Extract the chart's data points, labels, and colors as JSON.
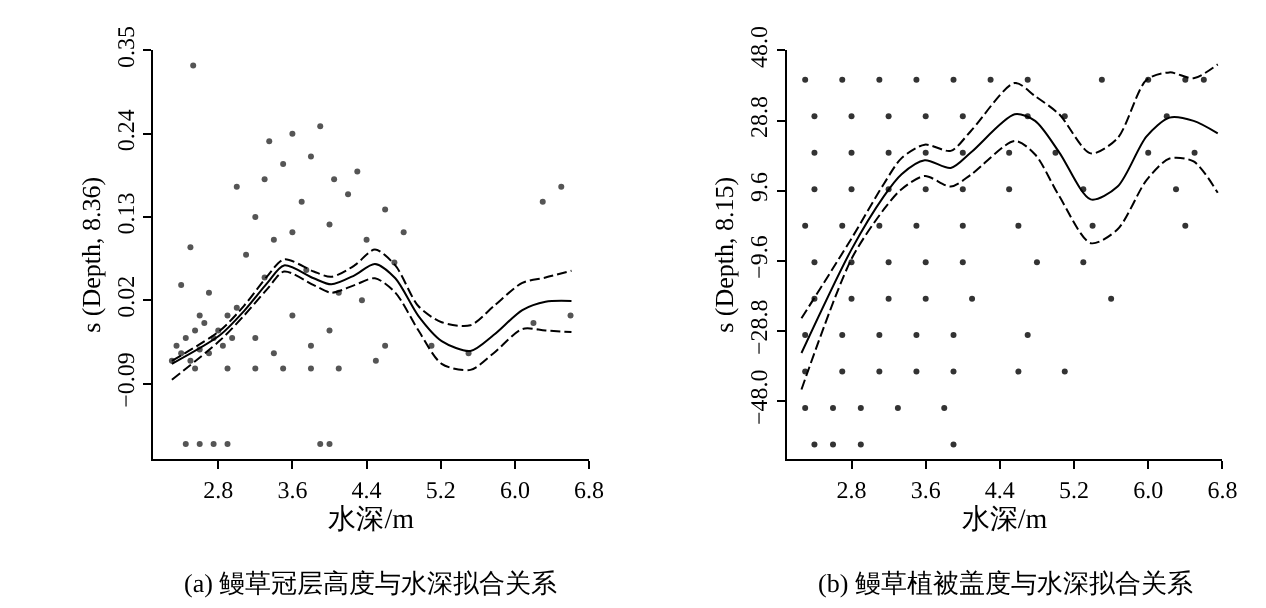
{
  "chart_data": [
    {
      "type": "scatter",
      "title": "(a) 鳗草冠层高度与水深拟合关系",
      "xlabel": "水深/m",
      "ylabel": "s (Depth, 8.36)",
      "xlim": [
        2.1,
        6.8
      ],
      "ylim": [
        -0.19,
        0.35
      ],
      "xticks": [
        2.8,
        3.6,
        4.4,
        5.2,
        {
          "value": 6,
          "label": "6.0"
        },
        6.8
      ],
      "yticks": [
        -0.09,
        0.02,
        0.13,
        0.24,
        0.35
      ],
      "series": [
        {
          "color": "#555555",
          "x": [
            2.3,
            2.35,
            2.4,
            2.45,
            2.5,
            2.55,
            2.6,
            2.65,
            2.7,
            2.75,
            2.8,
            2.85,
            2.9,
            2.95,
            3.0,
            2.4,
            2.5,
            2.6,
            2.7,
            2.55,
            2.9,
            3.2,
            3.5,
            3.8,
            4.1,
            3.1,
            3.2,
            3.3,
            3.35,
            3.4,
            3.5,
            3.6,
            3.7,
            3.75,
            3.8,
            3.9,
            4.0,
            4.05,
            4.1,
            4.2,
            4.3,
            4.4,
            3.0,
            3.2,
            3.4,
            3.6,
            3.8,
            4.0,
            3.3,
            3.6,
            4.6,
            4.7,
            4.8,
            4.6,
            4.5,
            4.35,
            5.1,
            5.5,
            6.2,
            6.3,
            6.5,
            6.6,
            2.53,
            2.45,
            2.6,
            2.75,
            2.9,
            3.9,
            4.0
          ],
          "values": [
            -0.06,
            -0.04,
            -0.05,
            -0.03,
            -0.06,
            -0.02,
            -0.045,
            -0.01,
            -0.05,
            -0.03,
            -0.02,
            -0.04,
            0.0,
            -0.03,
            0.01,
            0.04,
            0.09,
            0.0,
            0.03,
            -0.07,
            -0.07,
            -0.07,
            -0.07,
            -0.07,
            -0.07,
            0.08,
            0.13,
            0.18,
            0.23,
            0.1,
            0.2,
            0.24,
            0.15,
            0.06,
            0.21,
            0.25,
            0.12,
            0.18,
            0.03,
            0.16,
            0.19,
            0.1,
            0.17,
            -0.03,
            -0.05,
            0.0,
            -0.04,
            -0.02,
            0.05,
            0.11,
            0.14,
            0.07,
            0.11,
            -0.04,
            -0.06,
            0.02,
            -0.04,
            -0.05,
            -0.01,
            0.15,
            0.17,
            0.0,
            0.33,
            -0.17,
            -0.17,
            -0.17,
            -0.17,
            -0.17,
            -0.17
          ]
        },
        {
          "type": "line",
          "color": "#000000",
          "line_style": "solid",
          "x": [
            2.3,
            2.82,
            3.08,
            3.33,
            3.51,
            3.83,
            4.02,
            4.27,
            4.49,
            4.71,
            4.96,
            5.21,
            5.52,
            5.77,
            6.08,
            6.33,
            6.61
          ],
          "values": [
            -0.064,
            -0.026,
            0.006,
            0.043,
            0.066,
            0.049,
            0.041,
            0.053,
            0.068,
            0.049,
            -0.001,
            -0.034,
            -0.047,
            -0.026,
            0.007,
            0.018,
            0.019
          ]
        },
        {
          "type": "line",
          "color": "#000000",
          "line_style": "dashed",
          "x": [
            2.3,
            2.82,
            3.08,
            3.33,
            3.51,
            3.83,
            4.02,
            4.27,
            4.49,
            4.71,
            4.96,
            5.21,
            5.52,
            5.77,
            6.08,
            6.33,
            6.61
          ],
          "values": [
            -0.06,
            -0.02,
            0.013,
            0.052,
            0.074,
            0.058,
            0.051,
            0.066,
            0.087,
            0.066,
            0.012,
            -0.009,
            -0.013,
            0.012,
            0.043,
            0.05,
            0.059
          ]
        },
        {
          "type": "line",
          "color": "#000000",
          "line_style": "dashed",
          "x": [
            2.3,
            2.82,
            3.08,
            3.33,
            3.51,
            3.83,
            4.02,
            4.27,
            4.49,
            4.71,
            4.96,
            5.21,
            5.52,
            5.77,
            6.08,
            6.33,
            6.61
          ],
          "values": [
            -0.085,
            -0.033,
            0.0,
            0.035,
            0.058,
            0.04,
            0.03,
            0.04,
            0.049,
            0.03,
            -0.02,
            -0.064,
            -0.072,
            -0.05,
            -0.018,
            -0.02,
            -0.022
          ]
        }
      ]
    },
    {
      "type": "scatter",
      "title": "(b) 鳗草植被盖度与水深拟合关系",
      "xlabel": "水深/m",
      "ylabel": "s (Depth, 8.15)",
      "xlim": [
        2.1,
        6.8
      ],
      "ylim": [
        -64,
        48
      ],
      "xticks": [
        2.8,
        3.6,
        4.4,
        5.2,
        {
          "value": 6,
          "label": "6.0"
        },
        6.8
      ],
      "yticks": [
        {
          "value": -48,
          "label": "−48.0"
        },
        -28.8,
        -9.6,
        9.6,
        28.8,
        {
          "value": 48,
          "label": "48.0"
        }
      ],
      "series": [
        {
          "color": "#333333",
          "x": [
            2.3,
            2.7,
            3.1,
            3.5,
            3.9,
            4.3,
            4.7,
            5.5,
            6.0,
            6.4,
            6.6,
            2.4,
            2.8,
            3.2,
            3.6,
            4.0,
            4.7,
            5.1,
            6.2,
            2.4,
            2.8,
            3.2,
            3.6,
            4.0,
            4.5,
            5.0,
            6.0,
            6.5,
            2.4,
            2.8,
            3.2,
            3.6,
            4.0,
            4.5,
            5.3,
            6.3,
            2.3,
            2.7,
            3.1,
            3.5,
            4.0,
            4.6,
            5.4,
            6.4,
            2.4,
            2.8,
            3.2,
            3.6,
            4.0,
            4.8,
            5.3,
            2.4,
            2.8,
            3.2,
            3.6,
            4.1,
            5.6,
            2.3,
            2.7,
            3.1,
            3.5,
            3.9,
            4.7,
            2.3,
            2.7,
            3.1,
            3.5,
            3.9,
            4.6,
            5.1,
            2.3,
            2.6,
            2.9,
            3.3,
            3.8,
            2.4,
            2.6,
            2.9,
            3.9
          ],
          "values": [
            40,
            40,
            40,
            40,
            40,
            40,
            40,
            40,
            40,
            40,
            40,
            30,
            30,
            30,
            30,
            30,
            30,
            30,
            30,
            20,
            20,
            20,
            20,
            20,
            20,
            20,
            20,
            20,
            10,
            10,
            10,
            10,
            10,
            10,
            10,
            10,
            0,
            0,
            0,
            0,
            0,
            0,
            0,
            0,
            -10,
            -10,
            -10,
            -10,
            -10,
            -10,
            -10,
            -20,
            -20,
            -20,
            -20,
            -20,
            -20,
            -30,
            -30,
            -30,
            -30,
            -30,
            -30,
            -40,
            -40,
            -40,
            -40,
            -40,
            -40,
            -40,
            -50,
            -50,
            -50,
            -50,
            -50,
            -60,
            -60,
            -60,
            -60
          ]
        },
        {
          "type": "line",
          "color": "#000000",
          "line_style": "solid",
          "x": [
            2.26,
            2.8,
            3.15,
            3.34,
            3.59,
            3.87,
            4.09,
            4.56,
            4.78,
            5.04,
            5.38,
            5.67,
            5.98,
            6.23,
            6.49,
            6.75
          ],
          "values": [
            -34.9,
            -6.5,
            8.1,
            14.1,
            17.9,
            15.8,
            20.1,
            30.5,
            28.7,
            20.1,
            7.2,
            10.7,
            24.4,
            29.6,
            28.7,
            25.3
          ]
        },
        {
          "type": "line",
          "color": "#000000",
          "line_style": "dashed",
          "x": [
            2.26,
            2.8,
            3.15,
            3.34,
            3.59,
            3.87,
            4.09,
            4.56,
            4.78,
            5.04,
            5.38,
            5.67,
            5.98,
            6.23,
            6.49,
            6.75
          ],
          "values": [
            -25.4,
            -3.5,
            11.5,
            18.5,
            22.2,
            20.5,
            26.0,
            39.1,
            35.5,
            30.5,
            19.8,
            24.0,
            39.9,
            42.0,
            40.4,
            44.2
          ]
        },
        {
          "type": "line",
          "color": "#000000",
          "line_style": "dashed",
          "x": [
            2.26,
            2.8,
            3.15,
            3.34,
            3.59,
            3.87,
            4.09,
            4.56,
            4.78,
            5.04,
            5.38,
            5.67,
            5.98,
            6.23,
            6.49,
            6.75
          ],
          "values": [
            -44.9,
            -9.1,
            4.5,
            10.0,
            13.6,
            10.7,
            14.0,
            23.2,
            19.5,
            8.1,
            -4.8,
            -1.0,
            12.4,
            18.4,
            17.6,
            9.0
          ]
        }
      ]
    }
  ]
}
